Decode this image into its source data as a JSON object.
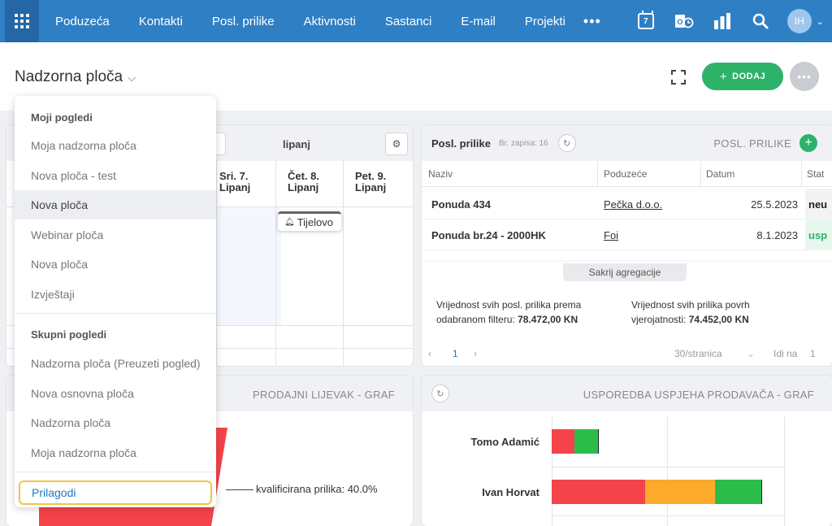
{
  "nav": {
    "items": [
      "Poduzeća",
      "Kontakti",
      "Posl. prilike",
      "Aktivnosti",
      "Sastanci",
      "E-mail",
      "Projekti"
    ],
    "more": "•••",
    "calendar_day": "7",
    "avatar_initials": "IH"
  },
  "header": {
    "title": "Nadzorna ploča",
    "add_label": "DODAJ",
    "add_plus": "+",
    "more": "•••"
  },
  "calendar": {
    "month": "lipanj",
    "days": [
      {
        "line1": "Sri. 7.",
        "line2": "Lipanj"
      },
      {
        "line1": "Čet. 8.",
        "line2": "Lipanj"
      },
      {
        "line1": "Pet. 9.",
        "line2": "Lipanj"
      }
    ],
    "event": "Tijelovo"
  },
  "deals": {
    "title": "Posl. prilike",
    "count": "Br. zapisa: 16",
    "header_label": "POSL. PRILIKE",
    "columns": [
      "Naziv",
      "Poduzeće",
      "Datum",
      "Stat"
    ],
    "rows": [
      {
        "name": "Ponuda 434",
        "company": "Pečka d.o.o.",
        "date": "25.5.2023",
        "status": "neu",
        "status_color": "#222222",
        "status_bg": "#f2f3f5"
      },
      {
        "name": "Ponuda br.24 - 2000HK",
        "company": "Foi",
        "date": "8.1.2023",
        "status": "usp",
        "status_color": "#2db269",
        "status_bg": "#e8f7ee"
      }
    ],
    "hide_agg": "Sakrij agregacije",
    "agg1_text": "Vrijednost svih posl. prilika prema odabranom filteru:",
    "agg1_value": "78.472,00 KN",
    "agg2_text": "Vrijednost svih prilika povrh vjerojatnosti:",
    "agg2_value": "74.452,00 KN",
    "page": "1",
    "per_page": "30/stranica",
    "goto": "Idi na",
    "goto_page": "1"
  },
  "funnel": {
    "title": "PRODAJNI LIJEVAK - GRAF",
    "label": "kvalificirana prilika: 40.0%",
    "color": "#f4434a"
  },
  "sales": {
    "title": "USPOREDBA USPJEHA PRODAVAČA - GRAF",
    "people": [
      {
        "name": "Tomo Adamić",
        "segments": [
          {
            "value": 28,
            "color": "#f4434a"
          },
          {
            "value": 30,
            "color": "#2cbc4a"
          }
        ]
      },
      {
        "name": "Ivan Horvat",
        "segments": [
          {
            "value": 115,
            "color": "#f4434a"
          },
          {
            "value": 86,
            "color": "#fbaa2b"
          },
          {
            "value": 58,
            "color": "#2cbc4a"
          }
        ]
      }
    ]
  },
  "dropdown": {
    "section1": "Moji pogledi",
    "items1": [
      "Moja nadzorna ploča",
      "Nova ploča - test",
      "Nova ploča",
      "Webinar ploča",
      "Nova ploča",
      "Izvještaji"
    ],
    "active_index": 2,
    "section2": "Skupni pogledi",
    "items2": [
      "Nadzorna ploča (Preuzeti pogled)",
      "Nova osnovna ploča",
      "Nadzorna ploča",
      "Moja nadzorna ploča"
    ],
    "customize": "Prilagodi"
  }
}
